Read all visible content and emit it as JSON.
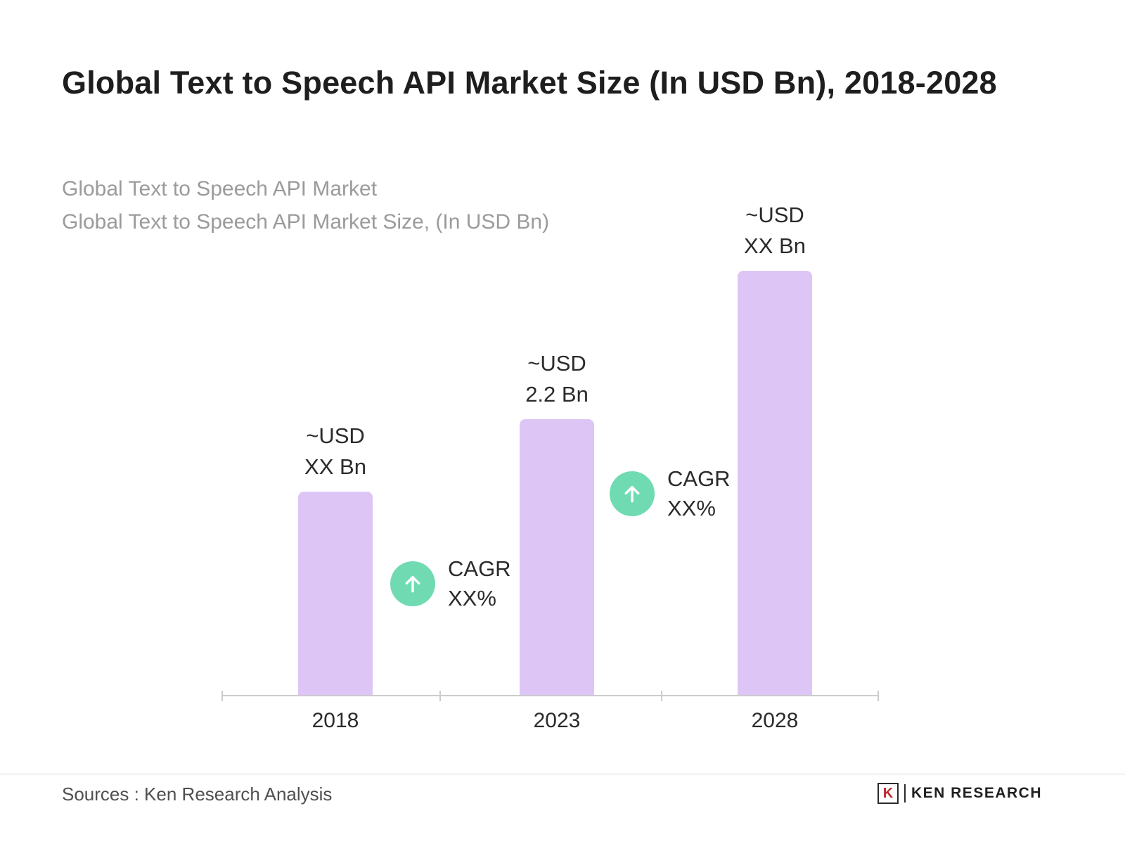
{
  "title": "Global Text to Speech API Market Size (In USD Bn), 2018-2028",
  "subtitle": {
    "line1": "Global Text to Speech API Market",
    "line2": "Global Text to Speech API Market Size, (In USD Bn)"
  },
  "chart_data": {
    "type": "bar",
    "title": "Global Text to Speech API Market Size (In USD Bn), 2018-2028",
    "categories": [
      "2018",
      "2023",
      "2028"
    ],
    "values": [
      1.62,
      2.2,
      3.38
    ],
    "estimated": [
      true,
      false,
      true
    ],
    "value_labels": [
      [
        "~USD",
        "XX Bn"
      ],
      [
        "~USD",
        "2.2 Bn"
      ],
      [
        "~USD",
        "XX Bn"
      ]
    ],
    "ylim": [
      0,
      3.7
    ],
    "grid": false,
    "legend": false,
    "bar_color": "#ddc6f6",
    "axis_color": "#cccccc",
    "annotations": [
      {
        "icon": "arrow-up-circle-icon",
        "color": "#70dbb3",
        "line1": "CAGR",
        "line2": "XX%",
        "position": "between 2018 and 2023"
      },
      {
        "icon": "arrow-up-circle-icon",
        "color": "#70dbb3",
        "line1": "CAGR",
        "line2": "XX%",
        "position": "between 2023 and 2028"
      }
    ]
  },
  "footer": {
    "sources": "Sources : Ken Research Analysis",
    "logo_letter": "K",
    "brand": "KEN RESEARCH"
  }
}
